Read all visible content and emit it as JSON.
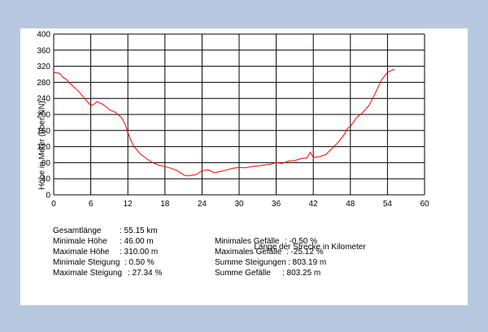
{
  "chart_data": {
    "type": "line",
    "title": "",
    "xlabel": "Länge der Strecke in Kilometer",
    "ylabel": "Höhe in Meter (über NN)",
    "xlim": [
      0,
      60
    ],
    "ylim": [
      0,
      400
    ],
    "x_ticks": [
      0,
      6,
      12,
      18,
      24,
      30,
      36,
      42,
      48,
      54,
      60
    ],
    "y_ticks": [
      0,
      40,
      80,
      120,
      160,
      200,
      240,
      280,
      320,
      360,
      400
    ],
    "grid": true,
    "line_color": "#ff0000",
    "series": [
      {
        "x": [
          0,
          1,
          1.5,
          2,
          3,
          4,
          5,
          6,
          6.5,
          7,
          7.5,
          8,
          9,
          10,
          11,
          11.5,
          12,
          12.5,
          13,
          14,
          15,
          16,
          17,
          18,
          19,
          20,
          21,
          21.5,
          22,
          23,
          24,
          25,
          26,
          27,
          28,
          29,
          30,
          31,
          32,
          33,
          34,
          35,
          36,
          37,
          38,
          39,
          40,
          41,
          41.5,
          42,
          43,
          44,
          45,
          46,
          47,
          47.5,
          48,
          49,
          50,
          51,
          52,
          53,
          54,
          55,
          55.15
        ],
        "y": [
          305,
          302,
          292,
          288,
          272,
          258,
          240,
          222,
          225,
          232,
          228,
          225,
          212,
          205,
          192,
          178,
          155,
          135,
          120,
          102,
          90,
          80,
          74,
          70,
          66,
          60,
          50,
          47,
          48,
          50,
          60,
          62,
          55,
          58,
          62,
          66,
          68,
          67,
          70,
          72,
          74,
          76,
          80,
          78,
          84,
          85,
          90,
          92,
          106,
          93,
          95,
          100,
          115,
          130,
          150,
          165,
          170,
          192,
          205,
          222,
          252,
          285,
          305,
          312,
          310
        ]
      }
    ]
  },
  "stats": {
    "left": [
      {
        "label": "Gesamtlänge",
        "value": ": 55.15  km"
      },
      {
        "label": "Minimale Höhe",
        "value": ": 46.00 m"
      },
      {
        "label": "Maximale Höhe",
        "value": ": 310.00 m"
      },
      {
        "label": "Minimale Steigung",
        "value": ": 0.50 %"
      },
      {
        "label": "Maximale Steigung",
        "value": ": 27.34 %"
      }
    ],
    "right": [
      {
        "label": "Minimales Gefälle",
        "value": ": -0.50 %"
      },
      {
        "label": "Maximales Gefälle",
        "value": ": -25.12 %"
      },
      {
        "label": "Summe Steigungen",
        "value": ": 803.19 m"
      },
      {
        "label": "Summe Gefälle",
        "value": ": 803.25 m"
      }
    ]
  },
  "colors": {
    "background": "#b8c8e0",
    "panel": "#ffffff",
    "grid": "#000000",
    "line": "#ff0000"
  }
}
